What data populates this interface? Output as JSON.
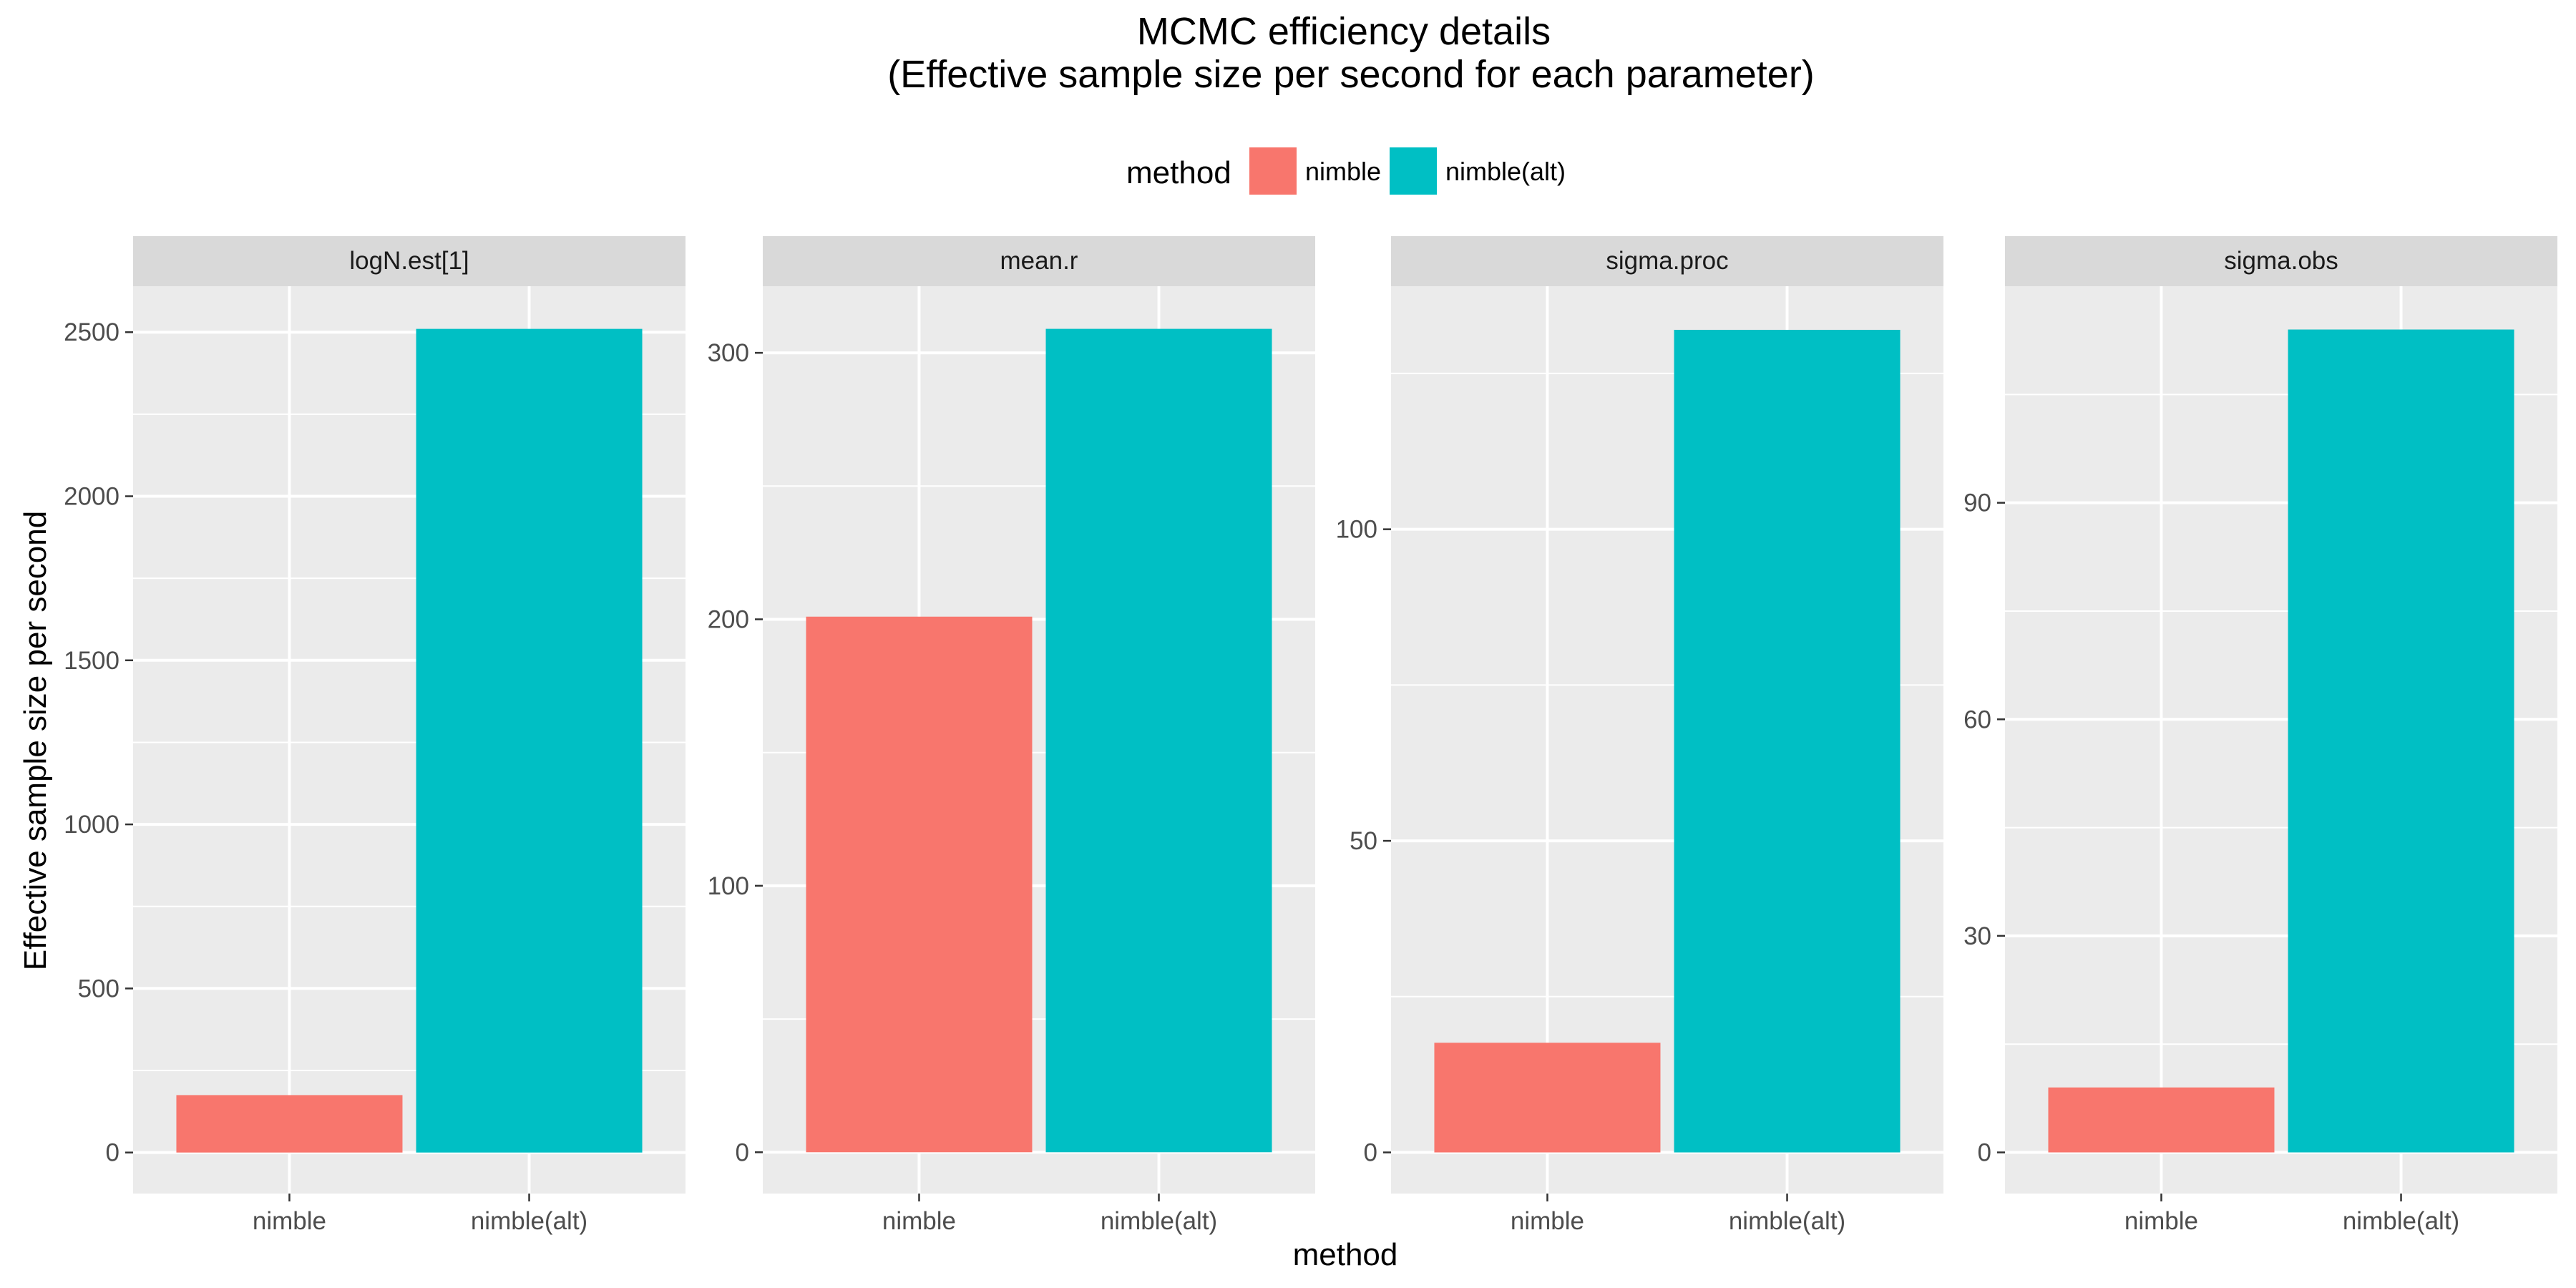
{
  "chart_data": {
    "type": "bar",
    "title": "MCMC efficiency details",
    "subtitle": "(Effective sample size per second for each parameter)",
    "xlabel": "method",
    "ylabel": "Effective sample size per second",
    "legend": {
      "title": "method",
      "position": "top",
      "entries": [
        {
          "label": "nimble",
          "color": "#F8766D"
        },
        {
          "label": "nimble(alt)",
          "color": "#00BFC4"
        }
      ]
    },
    "categories": [
      "nimble",
      "nimble(alt)"
    ],
    "colors": [
      "#F8766D",
      "#00BFC4"
    ],
    "panel_bg": "#EBEBEB",
    "strip_bg": "#D9D9D9",
    "grid": true,
    "facets": [
      {
        "name": "logN.est[1]",
        "values": [
          175,
          2510
        ],
        "ylim": [
          -125,
          2640
        ],
        "yticks": [
          0,
          500,
          1000,
          1500,
          2000,
          2500
        ],
        "yticklabels": [
          "0",
          "500",
          "1000",
          "1500",
          "2000",
          "2500"
        ],
        "yminor": [
          250,
          750,
          1250,
          1750,
          2250
        ]
      },
      {
        "name": "mean.r",
        "values": [
          201,
          309
        ],
        "ylim": [
          -15.5,
          325
        ],
        "yticks": [
          0,
          100,
          200,
          300
        ],
        "yticklabels": [
          "0",
          "100",
          "200",
          "300"
        ],
        "yminor": [
          50,
          150,
          250
        ]
      },
      {
        "name": "sigma.proc",
        "values": [
          17.6,
          132
        ],
        "ylim": [
          -6.6,
          139
        ],
        "yticks": [
          0,
          50,
          100
        ],
        "yticklabels": [
          "0",
          "50",
          "100"
        ],
        "yminor": [
          25,
          75,
          125
        ]
      },
      {
        "name": "sigma.obs",
        "values": [
          9,
          114
        ],
        "ylim": [
          -5.7,
          120
        ],
        "yticks": [
          0,
          30,
          60,
          90
        ],
        "yticklabels": [
          "0",
          "30",
          "60",
          "90"
        ],
        "yminor": [
          15,
          45,
          75,
          105
        ]
      }
    ]
  }
}
